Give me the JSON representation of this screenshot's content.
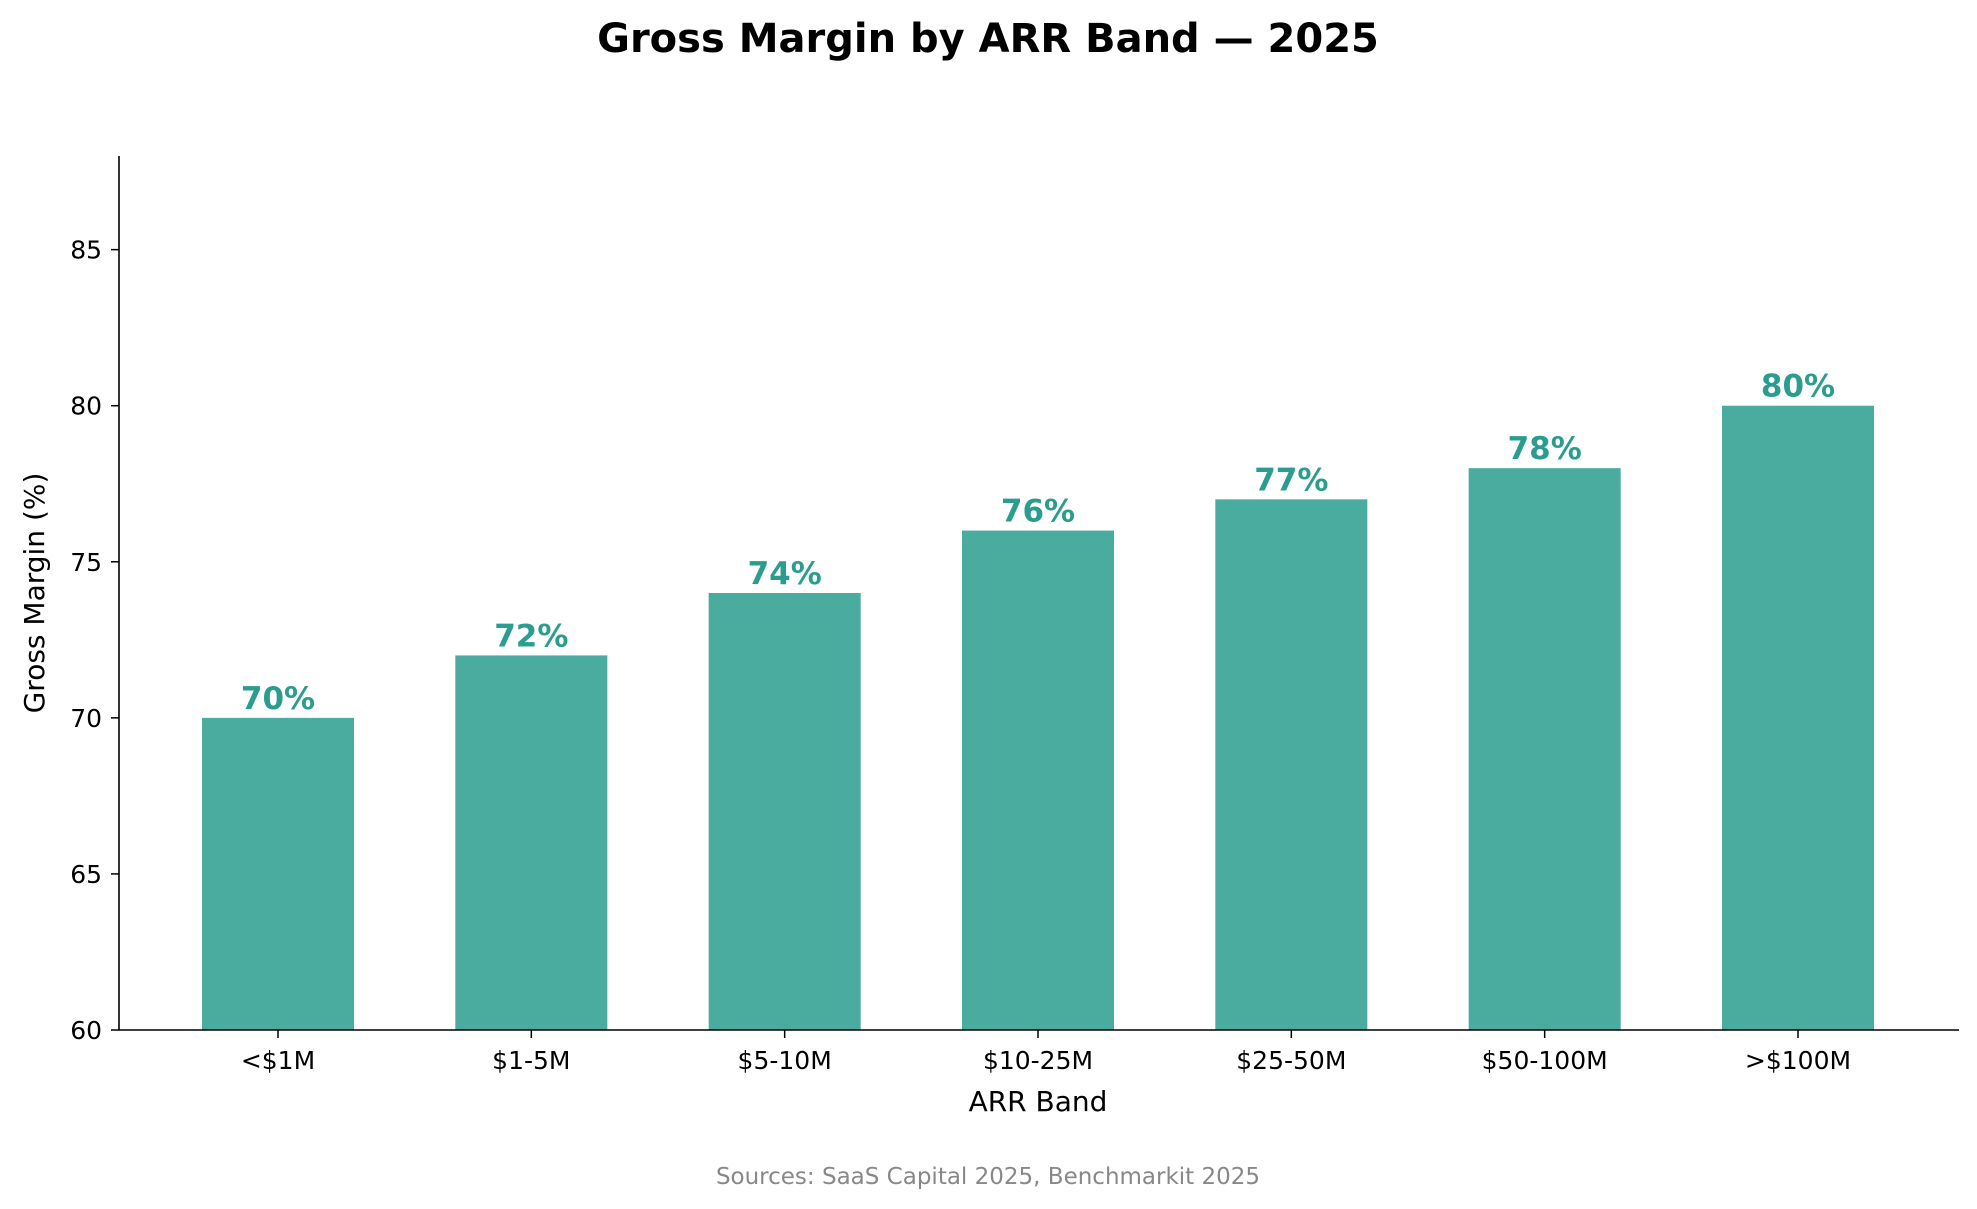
{
  "chart_data": {
    "type": "bar",
    "title": "Gross Margin by ARR Band — 2025",
    "xlabel": "ARR Band",
    "ylabel": "Gross Margin (%)",
    "categories": [
      "<$1M",
      "$1-5M",
      "$5-10M",
      "$10-25M",
      "$25-50M",
      "$50-100M",
      ">$100M"
    ],
    "values": [
      70,
      72,
      74,
      76,
      77,
      78,
      80
    ],
    "data_labels": [
      "70%",
      "72%",
      "74%",
      "76%",
      "77%",
      "78%",
      "80%"
    ],
    "ylim": [
      60,
      88
    ],
    "yticks": [
      60,
      65,
      70,
      75,
      80,
      85
    ],
    "grid": false,
    "legend": "none",
    "bar_color": "#4aab9f",
    "label_color": "#2a9d8f",
    "source": "Sources: SaaS Capital 2025, Benchmarkit 2025"
  }
}
